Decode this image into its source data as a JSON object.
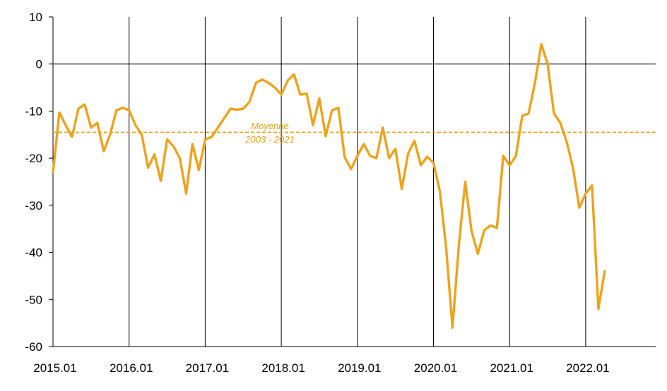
{
  "chart_data": {
    "type": "line",
    "title": "",
    "xlabel": "",
    "ylabel": "",
    "ylim": [
      -60,
      10
    ],
    "yticks": [
      "10",
      "0",
      "-10",
      "-20",
      "-30",
      "-40",
      "-50",
      "-60"
    ],
    "xticks": [
      "2015.01",
      "2016.01",
      "2017.01",
      "2018.01",
      "2019.01",
      "2020.01",
      "2021.01",
      "2022.01"
    ],
    "x_start": "2015.01",
    "x_end": "2022.04",
    "grid": "vertical lines at each year",
    "colors": {
      "series": "#F0A21B",
      "axis": "#000000",
      "average": "#E6A00E"
    },
    "average": {
      "label_line1": "Moyenne",
      "label_line2": "2003 - 2021",
      "value": -14.5
    },
    "series": [
      {
        "values": [
          -23,
          -10.3,
          -13,
          -15.5,
          -9.5,
          -8.6,
          -13.5,
          -12.5,
          -18.5,
          -15,
          -9.8,
          -9.3,
          -9.8,
          -13,
          -15,
          -22,
          -19.2,
          -24.8,
          -16,
          -17.5,
          -20,
          -27.5,
          -17,
          -22.5,
          -16,
          -15.5,
          -13.5,
          -11.5,
          -9.5,
          -9.7,
          -9.5,
          -8,
          -4,
          -3.3,
          -4,
          -5,
          -6.5,
          -3.5,
          -2.2,
          -6.5,
          -6.3,
          -13,
          -7.3,
          -15.3,
          -9.8,
          -9.3,
          -19.8,
          -22.3,
          -19.5,
          -17,
          -19.5,
          -20,
          -13.5,
          -20,
          -18,
          -26.5,
          -19,
          -16.3,
          -21.5,
          -19.7,
          -21,
          -27,
          -39,
          -56,
          -38.5,
          -25,
          -35.5,
          -40.3,
          -35.3,
          -34.3,
          -34.8,
          -19.5,
          -21.5,
          -19.5,
          -11,
          -10.5,
          -4,
          4.2,
          0,
          -10.5,
          -12.5,
          -16.5,
          -22,
          -30.5,
          -27.5,
          -25.8,
          -52,
          -44
        ]
      }
    ]
  }
}
